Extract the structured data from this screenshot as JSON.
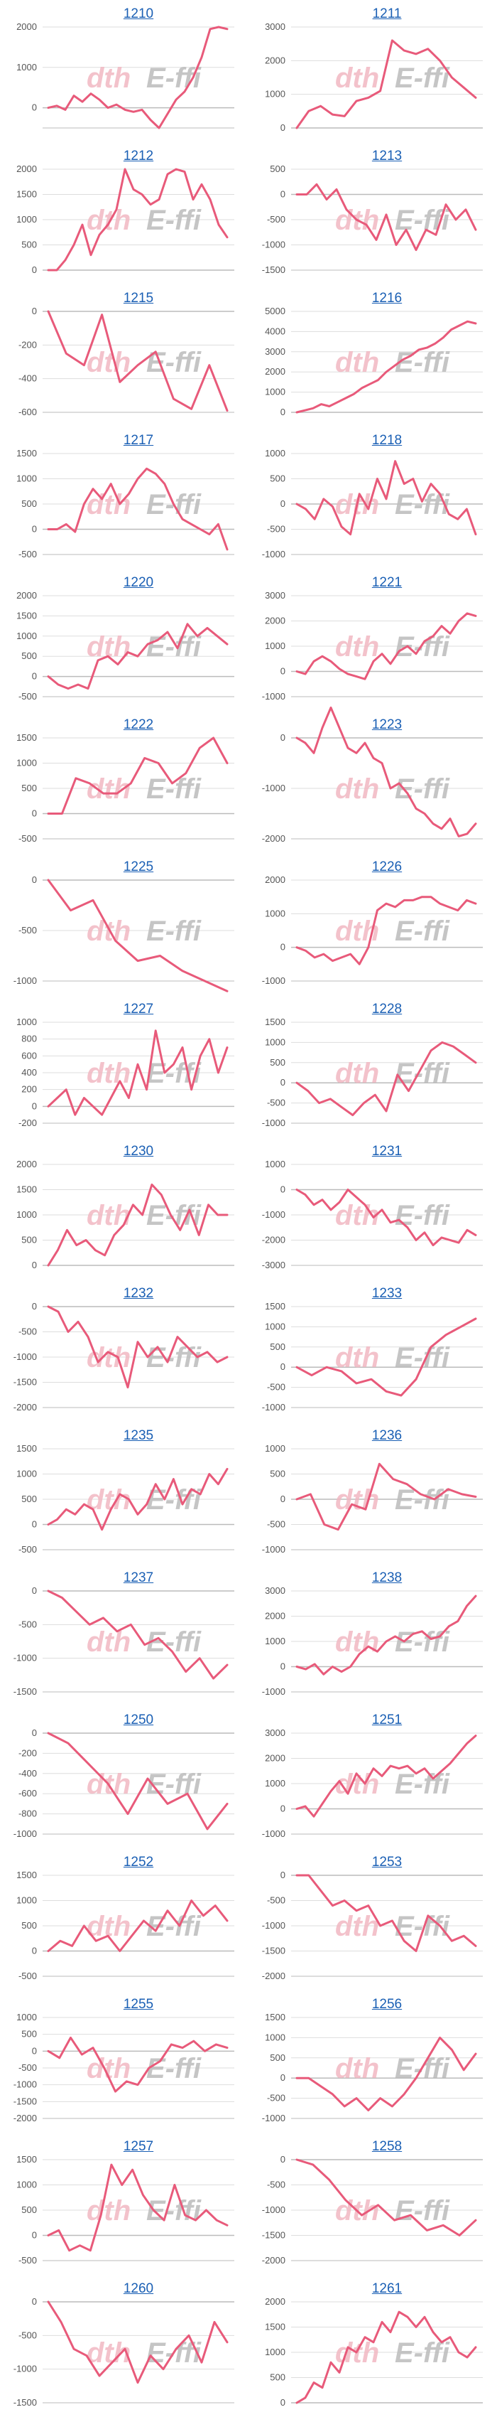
{
  "line_color": "#e85a7a",
  "grid_color": "#dddddd",
  "zero_line_color": "#bbbbbb",
  "title_color": "#1a5fb4",
  "watermark": {
    "left": "dth",
    "right": "E-ffi",
    "left_color": "#f1b8c2",
    "right_color": "#bcbcbc"
  },
  "chart_data": [
    {
      "type": "line",
      "title": "1210",
      "ylim": [
        -500,
        2000
      ],
      "yticks": [
        2000,
        1000,
        0
      ],
      "values": [
        0,
        50,
        -50,
        300,
        150,
        350,
        200,
        0,
        80,
        -50,
        -100,
        -50,
        -300,
        -500,
        -150,
        200,
        400,
        750,
        1250,
        1950,
        2000,
        1950
      ]
    },
    {
      "type": "line",
      "title": "1211",
      "ylim": [
        0,
        3000
      ],
      "yticks": [
        3000,
        2000,
        1000,
        0
      ],
      "values": [
        0,
        500,
        650,
        400,
        350,
        800,
        900,
        1100,
        2600,
        2300,
        2200,
        2350,
        2000,
        1500,
        1200,
        900
      ]
    },
    {
      "type": "line",
      "title": "1212",
      "ylim": [
        0,
        2000
      ],
      "yticks": [
        2000,
        1500,
        1000,
        500,
        0
      ],
      "values": [
        0,
        0,
        200,
        500,
        900,
        300,
        700,
        900,
        1200,
        2000,
        1600,
        1500,
        1300,
        1400,
        1900,
        2000,
        1950,
        1400,
        1700,
        1400,
        900,
        650
      ]
    },
    {
      "type": "line",
      "title": "1213",
      "ylim": [
        -1500,
        500
      ],
      "yticks": [
        500,
        0,
        -500,
        -1000,
        -1500
      ],
      "values": [
        0,
        0,
        200,
        -100,
        100,
        -300,
        -500,
        -600,
        -900,
        -400,
        -1000,
        -700,
        -1100,
        -700,
        -800,
        -200,
        -500,
        -300,
        -700
      ]
    },
    {
      "type": "line",
      "title": "1215",
      "ylim": [
        -600,
        0
      ],
      "yticks": [
        0,
        -200,
        -400,
        -600
      ],
      "values": [
        0,
        -250,
        -320,
        -20,
        -420,
        -320,
        -240,
        -520,
        -580,
        -320,
        -590
      ]
    },
    {
      "type": "line",
      "title": "1216",
      "ylim": [
        0,
        5000
      ],
      "yticks": [
        5000,
        4000,
        3000,
        2000,
        1000,
        0
      ],
      "values": [
        0,
        100,
        200,
        400,
        300,
        500,
        700,
        900,
        1200,
        1400,
        1600,
        2000,
        2300,
        2600,
        2800,
        3100,
        3200,
        3400,
        3700,
        4100,
        4300,
        4500,
        4400
      ]
    },
    {
      "type": "line",
      "title": "1217",
      "ylim": [
        -500,
        1500
      ],
      "yticks": [
        1500,
        1000,
        500,
        0,
        -500
      ],
      "values": [
        0,
        0,
        100,
        -50,
        500,
        800,
        600,
        900,
        500,
        700,
        1000,
        1200,
        1100,
        900,
        500,
        200,
        100,
        0,
        -100,
        100,
        -400
      ]
    },
    {
      "type": "line",
      "title": "1218",
      "ylim": [
        -1000,
        1000
      ],
      "yticks": [
        1000,
        500,
        0,
        -500,
        -1000
      ],
      "values": [
        0,
        -100,
        -300,
        100,
        -50,
        -450,
        -600,
        200,
        -100,
        500,
        100,
        850,
        400,
        500,
        50,
        400,
        200,
        -200,
        -300,
        -100,
        -600
      ]
    },
    {
      "type": "line",
      "title": "1220",
      "ylim": [
        -500,
        2000
      ],
      "yticks": [
        2000,
        1500,
        1000,
        500,
        0,
        -500
      ],
      "values": [
        0,
        -200,
        -300,
        -200,
        -300,
        400,
        500,
        300,
        600,
        500,
        800,
        900,
        1100,
        700,
        1300,
        1000,
        1200,
        1000,
        800
      ]
    },
    {
      "type": "line",
      "title": "1221",
      "ylim": [
        -1000,
        3000
      ],
      "yticks": [
        3000,
        2000,
        1000,
        0,
        -1000
      ],
      "values": [
        0,
        -100,
        400,
        600,
        400,
        100,
        -100,
        -200,
        -300,
        400,
        700,
        300,
        800,
        1000,
        700,
        1200,
        1400,
        1800,
        1500,
        2000,
        2300,
        2200
      ]
    },
    {
      "type": "line",
      "title": "1222",
      "ylim": [
        -500,
        1500
      ],
      "yticks": [
        1500,
        1000,
        500,
        0,
        -500
      ],
      "values": [
        0,
        0,
        700,
        600,
        400,
        400,
        600,
        1100,
        1000,
        600,
        800,
        1300,
        1500,
        1000
      ]
    },
    {
      "type": "line",
      "title": "1223",
      "ylim": [
        -2000,
        0
      ],
      "yticks": [
        0,
        -1000,
        -2000
      ],
      "values": [
        0,
        -100,
        -300,
        200,
        600,
        200,
        -200,
        -300,
        -100,
        -400,
        -500,
        -1000,
        -900,
        -1100,
        -1400,
        -1500,
        -1700,
        -1800,
        -1600,
        -1950,
        -1900,
        -1700
      ]
    },
    {
      "type": "line",
      "title": "1225",
      "ylim": [
        -1000,
        0
      ],
      "yticks": [
        0,
        -500,
        -1000
      ],
      "values": [
        0,
        -300,
        -200,
        -600,
        -800,
        -750,
        -900,
        -1000,
        -1100
      ]
    },
    {
      "type": "line",
      "title": "1226",
      "ylim": [
        -1000,
        2000
      ],
      "yticks": [
        2000,
        1000,
        0,
        -1000
      ],
      "values": [
        0,
        -100,
        -300,
        -200,
        -400,
        -300,
        -200,
        -500,
        0,
        1100,
        1300,
        1200,
        1400,
        1400,
        1500,
        1500,
        1300,
        1200,
        1100,
        1400,
        1300
      ]
    },
    {
      "type": "line",
      "title": "1227",
      "ylim": [
        -200,
        1000
      ],
      "yticks": [
        1000,
        800,
        600,
        400,
        200,
        0,
        -200
      ],
      "values": [
        0,
        100,
        200,
        -100,
        100,
        0,
        -100,
        100,
        300,
        100,
        500,
        200,
        900,
        400,
        500,
        700,
        200,
        600,
        800,
        400,
        700
      ]
    },
    {
      "type": "line",
      "title": "1228",
      "ylim": [
        -1000,
        1500
      ],
      "yticks": [
        1500,
        1000,
        500,
        0,
        -500,
        -1000
      ],
      "values": [
        0,
        -200,
        -500,
        -400,
        -600,
        -800,
        -500,
        -300,
        -700,
        200,
        -200,
        300,
        800,
        1000,
        900,
        700,
        500
      ]
    },
    {
      "type": "line",
      "title": "1230",
      "ylim": [
        0,
        2000
      ],
      "yticks": [
        2000,
        1500,
        1000,
        500,
        0
      ],
      "values": [
        0,
        300,
        700,
        400,
        500,
        300,
        200,
        600,
        800,
        1200,
        1000,
        1600,
        1400,
        1000,
        700,
        1100,
        600,
        1200,
        1000,
        1000
      ]
    },
    {
      "type": "line",
      "title": "1231",
      "ylim": [
        -3000,
        1000
      ],
      "yticks": [
        1000,
        0,
        -1000,
        -2000,
        -3000
      ],
      "values": [
        0,
        -200,
        -600,
        -400,
        -800,
        -500,
        0,
        -300,
        -600,
        -1100,
        -800,
        -1300,
        -1200,
        -1500,
        -2000,
        -1700,
        -2200,
        -1900,
        -2000,
        -2100,
        -1600,
        -1800
      ]
    },
    {
      "type": "line",
      "title": "1232",
      "ylim": [
        -2000,
        0
      ],
      "yticks": [
        0,
        -500,
        -1000,
        -1500,
        -2000
      ],
      "values": [
        0,
        -100,
        -500,
        -300,
        -600,
        -1100,
        -900,
        -1000,
        -1600,
        -700,
        -1000,
        -800,
        -1100,
        -600,
        -800,
        -1000,
        -900,
        -1100,
        -1000
      ]
    },
    {
      "type": "line",
      "title": "1233",
      "ylim": [
        -1000,
        1500
      ],
      "yticks": [
        1500,
        1000,
        500,
        0,
        -500,
        -1000
      ],
      "values": [
        0,
        -200,
        0,
        -100,
        -400,
        -300,
        -600,
        -700,
        -300,
        500,
        800,
        1000,
        1200
      ]
    },
    {
      "type": "line",
      "title": "1235",
      "ylim": [
        -500,
        1500
      ],
      "yticks": [
        1500,
        1000,
        500,
        0,
        -500
      ],
      "values": [
        0,
        100,
        300,
        200,
        400,
        300,
        -100,
        300,
        600,
        500,
        200,
        400,
        800,
        500,
        900,
        400,
        700,
        600,
        1000,
        800,
        1100
      ]
    },
    {
      "type": "line",
      "title": "1236",
      "ylim": [
        -1000,
        1000
      ],
      "yticks": [
        1000,
        500,
        0,
        -500,
        -1000
      ],
      "values": [
        0,
        100,
        -500,
        -600,
        -100,
        -200,
        700,
        400,
        300,
        100,
        0,
        200,
        100,
        50
      ]
    },
    {
      "type": "line",
      "title": "1237",
      "ylim": [
        -1500,
        0
      ],
      "yticks": [
        0,
        -500,
        -1000,
        -1500
      ],
      "values": [
        0,
        -100,
        -300,
        -500,
        -400,
        -600,
        -500,
        -800,
        -700,
        -900,
        -1200,
        -1000,
        -1300,
        -1100
      ]
    },
    {
      "type": "line",
      "title": "1238",
      "ylim": [
        -1000,
        3000
      ],
      "yticks": [
        3000,
        2000,
        1000,
        0,
        -1000
      ],
      "values": [
        0,
        -100,
        100,
        -300,
        0,
        -200,
        0,
        500,
        800,
        600,
        1000,
        1200,
        1000,
        1300,
        1400,
        1100,
        1200,
        1600,
        1800,
        2400,
        2800
      ]
    },
    {
      "type": "line",
      "title": "1250",
      "ylim": [
        -1000,
        0
      ],
      "yticks": [
        0,
        -200,
        -400,
        -600,
        -800,
        -1000
      ],
      "values": [
        0,
        -100,
        -300,
        -500,
        -800,
        -450,
        -700,
        -600,
        -950,
        -700
      ]
    },
    {
      "type": "line",
      "title": "1251",
      "ylim": [
        -1000,
        3000
      ],
      "yticks": [
        3000,
        2000,
        1000,
        0,
        -1000
      ],
      "values": [
        0,
        100,
        -300,
        200,
        700,
        1100,
        600,
        1400,
        1000,
        1600,
        1300,
        1700,
        1600,
        1700,
        1400,
        1600,
        1200,
        1500,
        1800,
        2200,
        2600,
        2900
      ]
    },
    {
      "type": "line",
      "title": "1252",
      "ylim": [
        -500,
        1500
      ],
      "yticks": [
        1500,
        1000,
        500,
        0,
        -500
      ],
      "values": [
        0,
        200,
        100,
        500,
        200,
        300,
        0,
        300,
        600,
        400,
        800,
        500,
        1000,
        700,
        900,
        600
      ]
    },
    {
      "type": "line",
      "title": "1253",
      "ylim": [
        -2000,
        0
      ],
      "yticks": [
        0,
        -500,
        -1000,
        -1500,
        -2000
      ],
      "values": [
        0,
        0,
        -300,
        -600,
        -500,
        -700,
        -600,
        -1000,
        -900,
        -1300,
        -1500,
        -800,
        -1000,
        -1300,
        -1200,
        -1400
      ]
    },
    {
      "type": "line",
      "title": "1255",
      "ylim": [
        -2000,
        1000
      ],
      "yticks": [
        1000,
        500,
        0,
        -500,
        -1000,
        -1500,
        -2000
      ],
      "values": [
        0,
        -200,
        400,
        -100,
        100,
        -500,
        -1200,
        -900,
        -1000,
        -500,
        -300,
        200,
        100,
        300,
        0,
        200,
        100
      ]
    },
    {
      "type": "line",
      "title": "1256",
      "ylim": [
        -1000,
        1500
      ],
      "yticks": [
        1500,
        1000,
        500,
        0,
        -500,
        -1000
      ],
      "values": [
        0,
        0,
        -200,
        -400,
        -700,
        -500,
        -800,
        -500,
        -700,
        -400,
        0,
        500,
        1000,
        700,
        200,
        600
      ]
    },
    {
      "type": "line",
      "title": "1257",
      "ylim": [
        -500,
        1500
      ],
      "yticks": [
        1500,
        1000,
        500,
        0,
        -500
      ],
      "values": [
        0,
        100,
        -300,
        -200,
        -300,
        400,
        1400,
        1000,
        1300,
        800,
        500,
        300,
        1000,
        400,
        300,
        500,
        300,
        200
      ]
    },
    {
      "type": "line",
      "title": "1258",
      "ylim": [
        -2000,
        0
      ],
      "yticks": [
        0,
        -500,
        -1000,
        -1500,
        -2000
      ],
      "values": [
        0,
        -100,
        -400,
        -800,
        -1100,
        -900,
        -1200,
        -1100,
        -1400,
        -1300,
        -1500,
        -1200
      ]
    },
    {
      "type": "line",
      "title": "1260",
      "ylim": [
        -1500,
        0
      ],
      "yticks": [
        0,
        -500,
        -1000,
        -1500
      ],
      "values": [
        0,
        -300,
        -700,
        -800,
        -1100,
        -900,
        -700,
        -1200,
        -800,
        -1000,
        -700,
        -500,
        -900,
        -300,
        -600
      ]
    },
    {
      "type": "line",
      "title": "1261",
      "ylim": [
        0,
        2000
      ],
      "yticks": [
        2000,
        1500,
        1000,
        500,
        0
      ],
      "values": [
        0,
        100,
        400,
        300,
        800,
        600,
        1100,
        1000,
        1300,
        1200,
        1600,
        1400,
        1800,
        1700,
        1500,
        1700,
        1400,
        1200,
        1300,
        1000,
        900,
        1100
      ]
    }
  ]
}
